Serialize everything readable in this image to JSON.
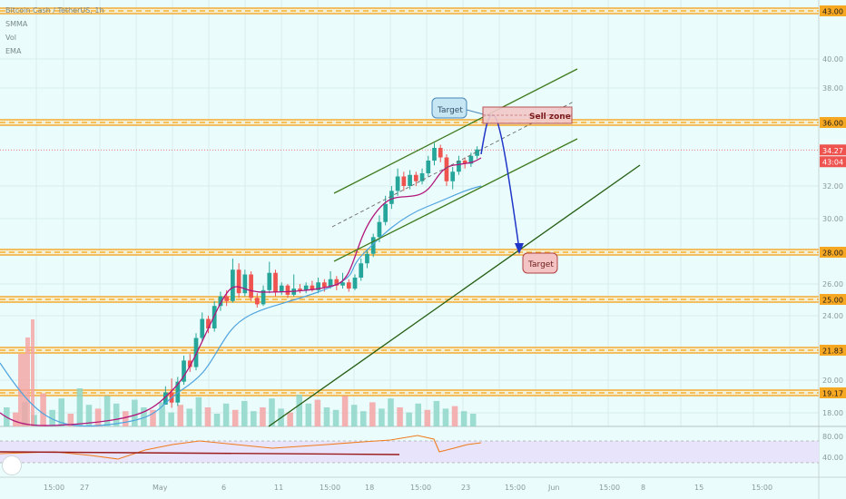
{
  "legend": {
    "header": "Bitcoin Cash / TetherUS, 1h",
    "items": [
      "SMMA",
      "Vol",
      "EMA"
    ]
  },
  "chart_data": {
    "type": "candlestick",
    "title": "",
    "price_axis": {
      "ticks": [
        "43.00",
        "40.00",
        "38.00",
        "36.00",
        "32.00",
        "30.00",
        "28.00",
        "26.00",
        "25.00",
        "24.00",
        "21.83",
        "20.00",
        "19.17",
        "18.00"
      ],
      "highlighted_levels": [
        "43.00",
        "36.00",
        "28.00",
        "25.00",
        "21.83",
        "19.17"
      ],
      "current_price": "34.27",
      "countdown": "43:04"
    },
    "rsi_axis": {
      "ticks": [
        "80.00",
        "40.00"
      ]
    },
    "time_axis": {
      "ticks": [
        "15:00",
        "27",
        "May",
        "6",
        "11",
        "15:00",
        "18",
        "15:00",
        "23",
        "15:00",
        "Jun",
        "15:00",
        "8",
        "15",
        "15:00"
      ]
    },
    "horizontal_levels": [
      43,
      36,
      28,
      25,
      21.83,
      19.17
    ],
    "annotations": [
      {
        "type": "callout",
        "text": "Target",
        "style": "blue"
      },
      {
        "type": "box",
        "text": "Sell zone",
        "style": "red"
      },
      {
        "type": "callout",
        "text": "Target",
        "style": "red"
      }
    ],
    "candles": [
      [
        17.5,
        19.2,
        17.2,
        19.6
      ],
      [
        19.2,
        18.6,
        18.3,
        20.1
      ],
      [
        18.6,
        19.9,
        18.4,
        20.2
      ],
      [
        19.9,
        21.2,
        19.7,
        21.5
      ],
      [
        21.2,
        20.8,
        20.5,
        21.6
      ],
      [
        20.8,
        22.6,
        20.6,
        22.9
      ],
      [
        22.6,
        23.8,
        22.4,
        24.2
      ],
      [
        23.8,
        23.2,
        22.9,
        24.0
      ],
      [
        23.2,
        24.6,
        23.0,
        24.9
      ],
      [
        24.6,
        25.2,
        24.3,
        25.5
      ],
      [
        25.2,
        24.9,
        24.6,
        25.6
      ],
      [
        24.9,
        26.9,
        24.8,
        27.6
      ],
      [
        26.9,
        25.4,
        25.1,
        27.3
      ],
      [
        25.4,
        26.6,
        25.2,
        26.9
      ],
      [
        26.6,
        25.1,
        24.9,
        26.8
      ],
      [
        25.1,
        24.7,
        24.5,
        25.4
      ],
      [
        24.7,
        25.6,
        24.6,
        25.9
      ],
      [
        25.6,
        26.7,
        25.4,
        27.4
      ],
      [
        26.7,
        25.5,
        25.2,
        26.9
      ],
      [
        25.5,
        25.9,
        25.3,
        26.1
      ],
      [
        25.9,
        25.3,
        25.1,
        26.0
      ],
      [
        25.3,
        25.7,
        25.2,
        26.6
      ],
      [
        25.7,
        25.6,
        25.4,
        26.0
      ],
      [
        25.6,
        25.9,
        25.4,
        26.1
      ],
      [
        25.9,
        25.6,
        25.5,
        26.2
      ],
      [
        25.6,
        26.1,
        25.4,
        26.4
      ],
      [
        26.1,
        25.8,
        25.5,
        26.3
      ],
      [
        25.8,
        26.3,
        25.7,
        26.8
      ],
      [
        26.3,
        25.9,
        25.6,
        26.5
      ],
      [
        25.9,
        26.1,
        25.7,
        26.7
      ],
      [
        26.1,
        25.7,
        25.5,
        26.3
      ],
      [
        25.7,
        26.4,
        25.6,
        26.6
      ],
      [
        26.4,
        27.3,
        26.2,
        27.6
      ],
      [
        27.3,
        27.9,
        27.0,
        28.2
      ],
      [
        27.9,
        28.9,
        27.7,
        29.1
      ],
      [
        28.9,
        29.8,
        28.6,
        30.2
      ],
      [
        29.8,
        30.9,
        29.6,
        31.4
      ],
      [
        30.9,
        31.7,
        30.6,
        32.0
      ],
      [
        31.7,
        32.6,
        31.4,
        33.1
      ],
      [
        32.6,
        32.0,
        31.7,
        32.9
      ],
      [
        32.0,
        32.7,
        31.8,
        33.0
      ],
      [
        32.7,
        32.3,
        32.0,
        32.9
      ],
      [
        32.3,
        32.8,
        32.1,
        33.1
      ],
      [
        32.8,
        33.6,
        32.6,
        33.9
      ],
      [
        33.6,
        34.4,
        33.3,
        34.7
      ],
      [
        34.4,
        33.8,
        33.5,
        34.6
      ],
      [
        33.8,
        32.3,
        32.0,
        34.0
      ],
      [
        32.3,
        32.9,
        31.8,
        33.2
      ],
      [
        32.9,
        33.6,
        32.7,
        33.9
      ],
      [
        33.6,
        33.4,
        33.1,
        33.8
      ],
      [
        33.4,
        33.9,
        33.2,
        34.1
      ],
      [
        33.9,
        34.3,
        33.7,
        34.5
      ]
    ],
    "volume": [
      30,
      22,
      38,
      18,
      52,
      26,
      44,
      20,
      60,
      34,
      28,
      48,
      36,
      24,
      42,
      30,
      26,
      38,
      22,
      34,
      28,
      46,
      30,
      20,
      36,
      26,
      40,
      24,
      30,
      44,
      28,
      22,
      50,
      36,
      42,
      30,
      26,
      48,
      34,
      24,
      38,
      28,
      44,
      30,
      22,
      36,
      26,
      40,
      28,
      32,
      24,
      20
    ]
  }
}
